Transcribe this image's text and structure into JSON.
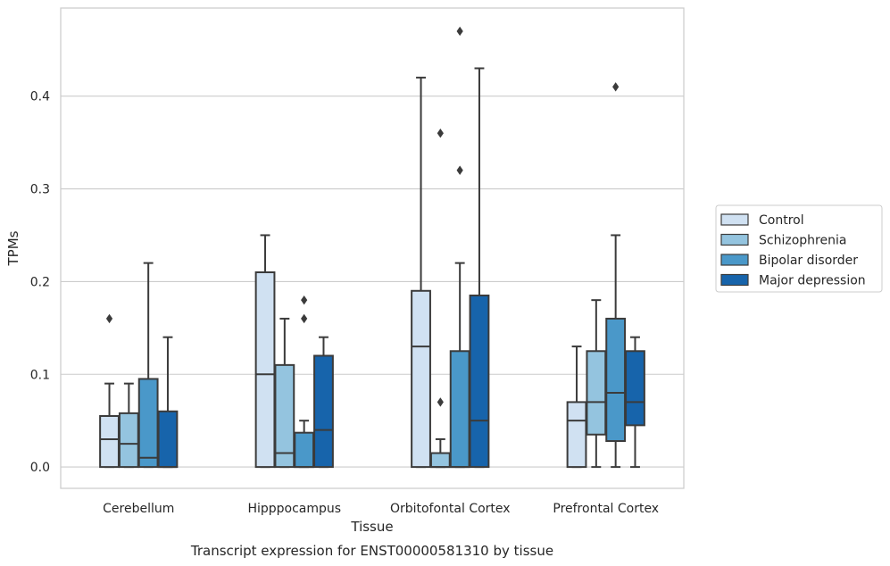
{
  "chart_data": {
    "type": "box",
    "title": "",
    "caption": "Transcript expression for ENST00000581310 by tissue",
    "xlabel": "Tissue",
    "ylabel": "TPMs",
    "ylim": [
      -0.023,
      0.495
    ],
    "yticks": [
      0.0,
      0.1,
      0.2,
      0.3,
      0.4
    ],
    "ytick_labels": [
      "0.0",
      "0.1",
      "0.2",
      "0.3",
      "0.4"
    ],
    "grid": "horizontal",
    "legend_position": "right",
    "categories": [
      "Cerebellum",
      "Hipppocampus",
      "Orbitofontal Cortex",
      "Prefrontal Cortex"
    ],
    "series": [
      {
        "name": "Control",
        "color": "#d0e1f2",
        "boxes": [
          {
            "q1": 0.0,
            "median": 0.03,
            "q3": 0.055,
            "whislo": 0.0,
            "whishi": 0.09,
            "fliers": [
              0.16
            ]
          },
          {
            "q1": 0.0,
            "median": 0.1,
            "q3": 0.21,
            "whislo": 0.0,
            "whishi": 0.25,
            "fliers": []
          },
          {
            "q1": 0.0,
            "median": 0.13,
            "q3": 0.19,
            "whislo": 0.0,
            "whishi": 0.42,
            "fliers": []
          },
          {
            "q1": 0.0,
            "median": 0.05,
            "q3": 0.07,
            "whislo": 0.0,
            "whishi": 0.13,
            "fliers": []
          }
        ]
      },
      {
        "name": "Schizophrenia",
        "color": "#94c4df",
        "boxes": [
          {
            "q1": 0.0,
            "median": 0.025,
            "q3": 0.058,
            "whislo": 0.0,
            "whishi": 0.09,
            "fliers": []
          },
          {
            "q1": 0.0,
            "median": 0.015,
            "q3": 0.11,
            "whislo": 0.0,
            "whishi": 0.16,
            "fliers": []
          },
          {
            "q1": 0.0,
            "median": 0.0,
            "q3": 0.015,
            "whislo": 0.0,
            "whishi": 0.03,
            "fliers": [
              0.07,
              0.36
            ]
          },
          {
            "q1": 0.035,
            "median": 0.07,
            "q3": 0.125,
            "whislo": 0.0,
            "whishi": 0.18,
            "fliers": []
          }
        ]
      },
      {
        "name": "Bipolar disorder",
        "color": "#4a98c9",
        "boxes": [
          {
            "q1": 0.0,
            "median": 0.01,
            "q3": 0.095,
            "whislo": 0.0,
            "whishi": 0.22,
            "fliers": []
          },
          {
            "q1": 0.0,
            "median": 0.0,
            "q3": 0.037,
            "whislo": 0.0,
            "whishi": 0.05,
            "fliers": [
              0.16,
              0.18
            ]
          },
          {
            "q1": 0.0,
            "median": 0.0,
            "q3": 0.125,
            "whislo": 0.0,
            "whishi": 0.22,
            "fliers": [
              0.32,
              0.47
            ]
          },
          {
            "q1": 0.028,
            "median": 0.08,
            "q3": 0.16,
            "whislo": 0.0,
            "whishi": 0.25,
            "fliers": [
              0.41
            ]
          }
        ]
      },
      {
        "name": "Major depression",
        "color": "#1764ab",
        "boxes": [
          {
            "q1": 0.0,
            "median": 0.0,
            "q3": 0.06,
            "whislo": 0.0,
            "whishi": 0.14,
            "fliers": []
          },
          {
            "q1": 0.0,
            "median": 0.04,
            "q3": 0.12,
            "whislo": 0.0,
            "whishi": 0.14,
            "fliers": []
          },
          {
            "q1": 0.0,
            "median": 0.05,
            "q3": 0.185,
            "whislo": 0.0,
            "whishi": 0.43,
            "fliers": []
          },
          {
            "q1": 0.045,
            "median": 0.07,
            "q3": 0.125,
            "whislo": 0.0,
            "whishi": 0.14,
            "fliers": []
          }
        ]
      }
    ]
  }
}
